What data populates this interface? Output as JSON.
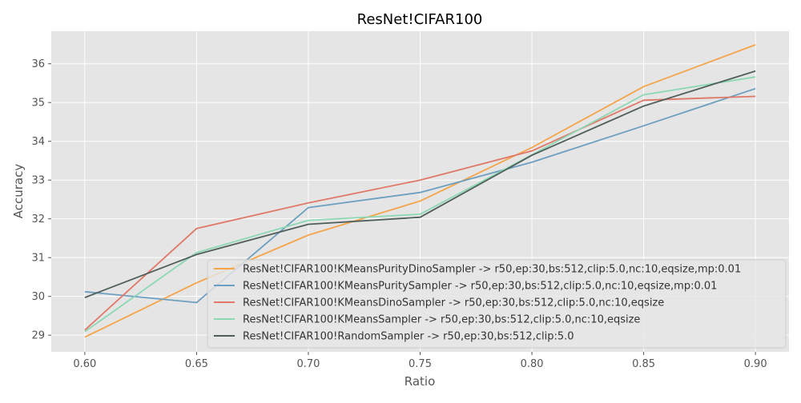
{
  "chart_data": {
    "type": "line",
    "title": "ResNet!CIFAR100",
    "xlabel": "Ratio",
    "ylabel": "Accuracy",
    "x": [
      0.6,
      0.65,
      0.7,
      0.75,
      0.8,
      0.85,
      0.9
    ],
    "x_tick_labels": [
      "0.60",
      "0.65",
      "0.70",
      "0.75",
      "0.80",
      "0.85",
      "0.90"
    ],
    "y_ticks": [
      29,
      30,
      31,
      32,
      33,
      34,
      35,
      36
    ],
    "y_tick_labels": [
      "29",
      "30",
      "31",
      "32",
      "33",
      "34",
      "35",
      "36"
    ],
    "xlim": [
      0.585,
      0.915
    ],
    "ylim": [
      28.57,
      36.84
    ],
    "grid": true,
    "legend_position": "lower-right",
    "series": [
      {
        "name": "ResNet!CIFAR100!KMeansPurityDinoSampler ->  r50,ep:30,bs:512,clip:5.0,nc:10,eqsize,mp:0.01",
        "color": "#f5a44a",
        "values": [
          28.95,
          30.35,
          31.58,
          32.46,
          33.84,
          35.41,
          36.49
        ]
      },
      {
        "name": "ResNet!CIFAR100!KMeansPuritySampler ->  r50,ep:30,bs:512,clip:5.0,nc:10,eqsize,mp:0.01",
        "color": "#6c9fc0",
        "values": [
          30.12,
          29.84,
          32.29,
          32.68,
          33.46,
          34.4,
          35.36
        ]
      },
      {
        "name": "ResNet!CIFAR100!KMeansDinoSampler ->  r50,ep:30,bs:512,clip:5.0,nc:10,eqsize",
        "color": "#e07868",
        "values": [
          29.13,
          31.75,
          32.41,
          33.0,
          33.75,
          35.06,
          35.16
        ]
      },
      {
        "name": "ResNet!CIFAR100!KMeansSampler ->  r50,ep:30,bs:512,clip:5.0,nc:10,eqsize",
        "color": "#8cd8b4",
        "values": [
          29.09,
          31.13,
          31.96,
          32.12,
          33.65,
          35.2,
          35.66
        ]
      },
      {
        "name": "ResNet!CIFAR100!RandomSampler ->  r50,ep:30,bs:512,clip:5.0",
        "color": "#4f5e58",
        "values": [
          29.97,
          31.08,
          31.86,
          32.04,
          33.64,
          34.91,
          35.81
        ]
      }
    ]
  }
}
